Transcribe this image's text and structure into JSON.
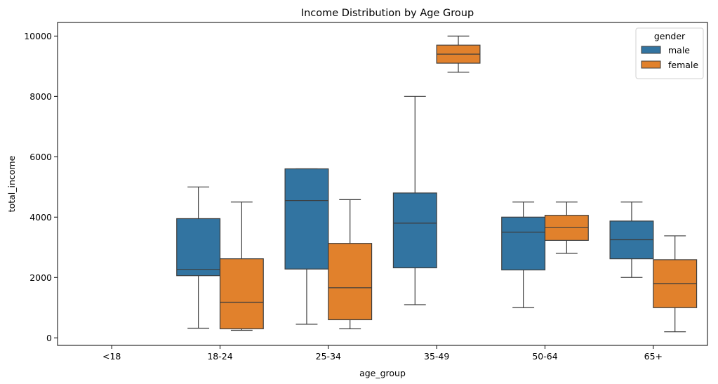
{
  "chart_data": {
    "type": "box",
    "title": "Income Distribution by Age Group",
    "xlabel": "age_group",
    "ylabel": "total_income",
    "categories": [
      "<18",
      "18-24",
      "25-34",
      "35-49",
      "50-64",
      "65+"
    ],
    "ylim": [
      -250,
      10450
    ],
    "yticks": [
      0,
      2000,
      4000,
      6000,
      8000,
      10000
    ],
    "grid": false,
    "legend": {
      "title": "gender",
      "placement": "top-right",
      "entries": [
        "male",
        "female"
      ]
    },
    "series": [
      {
        "name": "male",
        "color": "#3274a1",
        "boxes": [
          null,
          {
            "whislo": 320,
            "q1": 2060,
            "med": 2270,
            "q3": 3950,
            "whishi": 5000
          },
          {
            "whislo": 450,
            "q1": 2280,
            "med": 4550,
            "q3": 5600,
            "whishi": 5600
          },
          {
            "whislo": 1100,
            "q1": 2320,
            "med": 3800,
            "q3": 4800,
            "whishi": 8000
          },
          {
            "whislo": 1000,
            "q1": 2250,
            "med": 3500,
            "q3": 4000,
            "whishi": 4500
          },
          {
            "whislo": 2000,
            "q1": 2620,
            "med": 3250,
            "q3": 3870,
            "whishi": 4500
          }
        ]
      },
      {
        "name": "female",
        "color": "#e1812c",
        "boxes": [
          null,
          {
            "whislo": 250,
            "q1": 300,
            "med": 1180,
            "q3": 2620,
            "whishi": 4500
          },
          {
            "whislo": 300,
            "q1": 600,
            "med": 1660,
            "q3": 3130,
            "whishi": 4580
          },
          {
            "whislo": 8800,
            "q1": 9100,
            "med": 9400,
            "q3": 9700,
            "whishi": 10000
          },
          {
            "whislo": 2800,
            "q1": 3230,
            "med": 3650,
            "q3": 4060,
            "whishi": 4500
          },
          {
            "whislo": 200,
            "q1": 1000,
            "med": 1800,
            "q3": 2590,
            "whishi": 3380
          }
        ]
      }
    ]
  }
}
